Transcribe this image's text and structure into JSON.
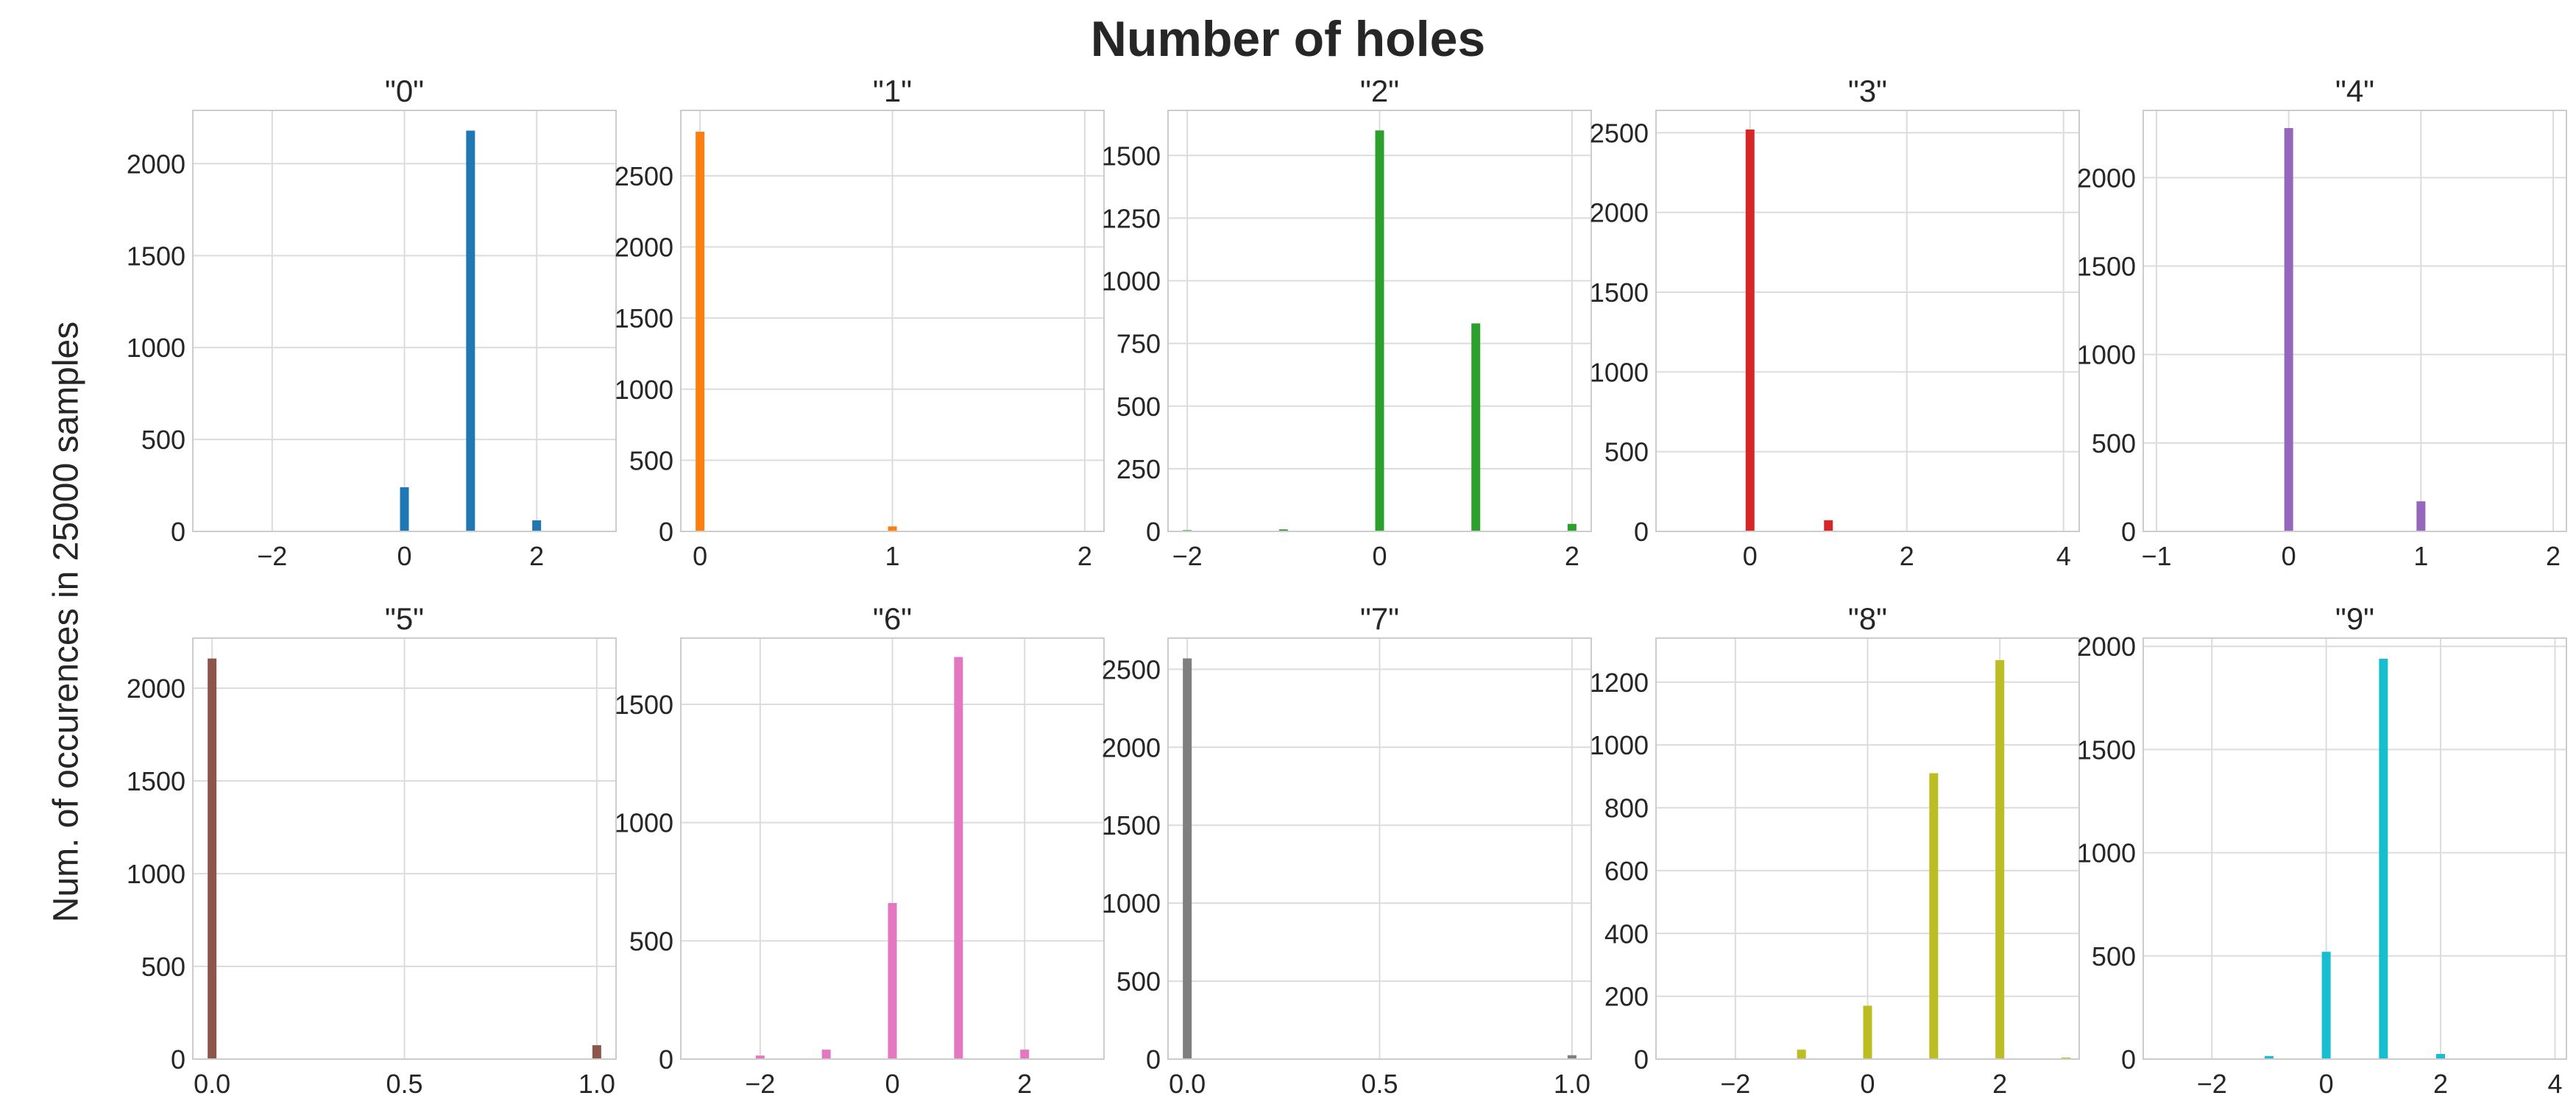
{
  "figure": {
    "title": "Number of holes",
    "ylabel": "Num. of occurences in 25000 samples"
  },
  "chart_data": [
    {
      "type": "bar",
      "title": "\"0\"",
      "color": "#1f77b4",
      "xlim": [
        -3.2,
        3.2
      ],
      "ylim": [
        0,
        2290
      ],
      "xticks": [
        -2,
        0,
        2
      ],
      "xtick_labels": [
        "−2",
        "0",
        "2"
      ],
      "yticks": [
        0,
        500,
        1000,
        1500,
        2000
      ],
      "ytick_labels": [
        "0",
        "500",
        "1000",
        "1500",
        "2000"
      ],
      "x": [
        0,
        1,
        2
      ],
      "values": [
        240,
        2180,
        60
      ]
    },
    {
      "type": "bar",
      "title": "\"1\"",
      "color": "#ff7f0e",
      "xlim": [
        -0.1,
        2.1
      ],
      "ylim": [
        0,
        2960
      ],
      "xticks": [
        0,
        1,
        2
      ],
      "xtick_labels": [
        "0",
        "1",
        "2"
      ],
      "yticks": [
        0,
        500,
        1000,
        1500,
        2000,
        2500
      ],
      "ytick_labels": [
        "0",
        "500",
        "1000",
        "1500",
        "2000",
        "2500"
      ],
      "x": [
        0,
        1
      ],
      "values": [
        2810,
        35
      ]
    },
    {
      "type": "bar",
      "title": "\"2\"",
      "color": "#2ca02c",
      "xlim": [
        -2.2,
        2.2
      ],
      "ylim": [
        0,
        1680
      ],
      "xticks": [
        -2,
        0,
        2
      ],
      "xtick_labels": [
        "−2",
        "0",
        "2"
      ],
      "yticks": [
        0,
        250,
        500,
        750,
        1000,
        1250,
        1500
      ],
      "ytick_labels": [
        "0",
        "250",
        "500",
        "750",
        "1000",
        "1250",
        "1500"
      ],
      "x": [
        -2,
        -1,
        0,
        1,
        2
      ],
      "values": [
        5,
        8,
        1600,
        830,
        30
      ]
    },
    {
      "type": "bar",
      "title": "\"3\"",
      "color": "#d62728",
      "xlim": [
        -1.2,
        4.2
      ],
      "ylim": [
        0,
        2640
      ],
      "xticks": [
        0,
        2,
        4
      ],
      "xtick_labels": [
        "0",
        "2",
        "4"
      ],
      "yticks": [
        0,
        500,
        1000,
        1500,
        2000,
        2500
      ],
      "ytick_labels": [
        "0",
        "500",
        "1000",
        "1500",
        "2000",
        "2500"
      ],
      "x": [
        0,
        1
      ],
      "values": [
        2520,
        70
      ]
    },
    {
      "type": "bar",
      "title": "\"4\"",
      "color": "#9467bd",
      "xlim": [
        -1.1,
        2.1
      ],
      "ylim": [
        0,
        2380
      ],
      "xticks": [
        -1,
        0,
        1,
        2
      ],
      "xtick_labels": [
        "−1",
        "0",
        "1",
        "2"
      ],
      "yticks": [
        0,
        500,
        1000,
        1500,
        2000
      ],
      "ytick_labels": [
        "0",
        "500",
        "1000",
        "1500",
        "2000"
      ],
      "x": [
        0,
        1
      ],
      "values": [
        2280,
        170
      ]
    },
    {
      "type": "bar",
      "title": "\"5\"",
      "color": "#8c564b",
      "xlim": [
        -0.05,
        1.05
      ],
      "ylim": [
        0,
        2270
      ],
      "xticks": [
        0,
        0.5,
        1
      ],
      "xtick_labels": [
        "0.0",
        "0.5",
        "1.0"
      ],
      "yticks": [
        0,
        500,
        1000,
        1500,
        2000
      ],
      "ytick_labels": [
        "0",
        "500",
        "1000",
        "1500",
        "2000"
      ],
      "x": [
        0,
        1
      ],
      "values": [
        2160,
        75
      ]
    },
    {
      "type": "bar",
      "title": "\"6\"",
      "color": "#e377c2",
      "xlim": [
        -3.2,
        3.2
      ],
      "ylim": [
        0,
        1780
      ],
      "xticks": [
        -2,
        0,
        2
      ],
      "xtick_labels": [
        "−2",
        "0",
        "2"
      ],
      "yticks": [
        0,
        500,
        1000,
        1500
      ],
      "ytick_labels": [
        "0",
        "500",
        "1000",
        "1500"
      ],
      "x": [
        -2,
        -1,
        0,
        1,
        2
      ],
      "values": [
        15,
        40,
        660,
        1700,
        40
      ]
    },
    {
      "type": "bar",
      "title": "\"7\"",
      "color": "#7f7f7f",
      "xlim": [
        -0.05,
        1.05
      ],
      "ylim": [
        0,
        2700
      ],
      "xticks": [
        0,
        0.5,
        1
      ],
      "xtick_labels": [
        "0.0",
        "0.5",
        "1.0"
      ],
      "yticks": [
        0,
        500,
        1000,
        1500,
        2000,
        2500
      ],
      "ytick_labels": [
        "0",
        "500",
        "1000",
        "1500",
        "2000",
        "2500"
      ],
      "x": [
        0,
        1
      ],
      "values": [
        2570,
        25
      ]
    },
    {
      "type": "bar",
      "title": "\"8\"",
      "color": "#bcbd22",
      "xlim": [
        -3.2,
        3.2
      ],
      "ylim": [
        0,
        1340
      ],
      "xticks": [
        -2,
        0,
        2
      ],
      "xtick_labels": [
        "−2",
        "0",
        "2"
      ],
      "yticks": [
        0,
        200,
        400,
        600,
        800,
        1000,
        1200
      ],
      "ytick_labels": [
        "0",
        "200",
        "400",
        "600",
        "800",
        "1000",
        "1200"
      ],
      "x": [
        -1,
        0,
        1,
        2,
        3
      ],
      "values": [
        30,
        170,
        910,
        1270,
        5
      ]
    },
    {
      "type": "bar",
      "title": "\"9\"",
      "color": "#17becf",
      "xlim": [
        -3.2,
        4.2
      ],
      "ylim": [
        0,
        2040
      ],
      "xticks": [
        -2,
        0,
        2,
        4
      ],
      "xtick_labels": [
        "−2",
        "0",
        "2",
        "4"
      ],
      "yticks": [
        0,
        500,
        1000,
        1500,
        2000
      ],
      "ytick_labels": [
        "0",
        "500",
        "1000",
        "1500",
        "2000"
      ],
      "x": [
        -1,
        0,
        1,
        2
      ],
      "values": [
        15,
        520,
        1940,
        25
      ]
    }
  ]
}
